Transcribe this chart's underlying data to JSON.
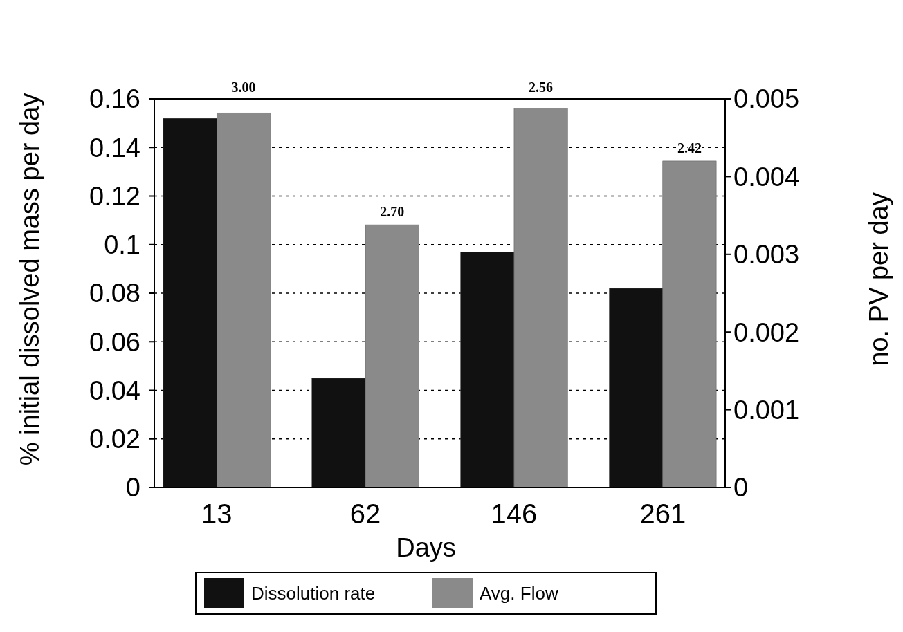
{
  "chart_data": {
    "type": "bar",
    "xlabel": "Days",
    "ylabel": "% initial dissolved mass per day",
    "y2label": "no. PV per day",
    "categories": [
      "13",
      "62",
      "146",
      "261"
    ],
    "series": [
      {
        "name": "Dissolution rate",
        "color": "#111111",
        "values": [
          0.152,
          0.045,
          0.097,
          0.082
        ]
      },
      {
        "name": "Avg. Flow",
        "color": "#8a8a8a",
        "values": [
          0.00482,
          0.00338,
          0.00488,
          0.0042
        ],
        "axis": "y2"
      }
    ],
    "annotations": [
      "3.00",
      "2.70",
      "2.56",
      "2.42"
    ],
    "ylim": [
      0,
      0.16
    ],
    "yticks": [
      0,
      {
        "value": 0.02,
        "label": "0.02"
      },
      0.04,
      0.06,
      0.08,
      {
        "value": 0.1,
        "label": "0.1"
      },
      0.12,
      0.14,
      0.16
    ],
    "y2lim": [
      0,
      0.005
    ],
    "y2ticks": [
      0,
      0.001,
      0.002,
      0.003,
      0.004,
      0.005
    ],
    "grid": "y",
    "legend": "bottom"
  }
}
